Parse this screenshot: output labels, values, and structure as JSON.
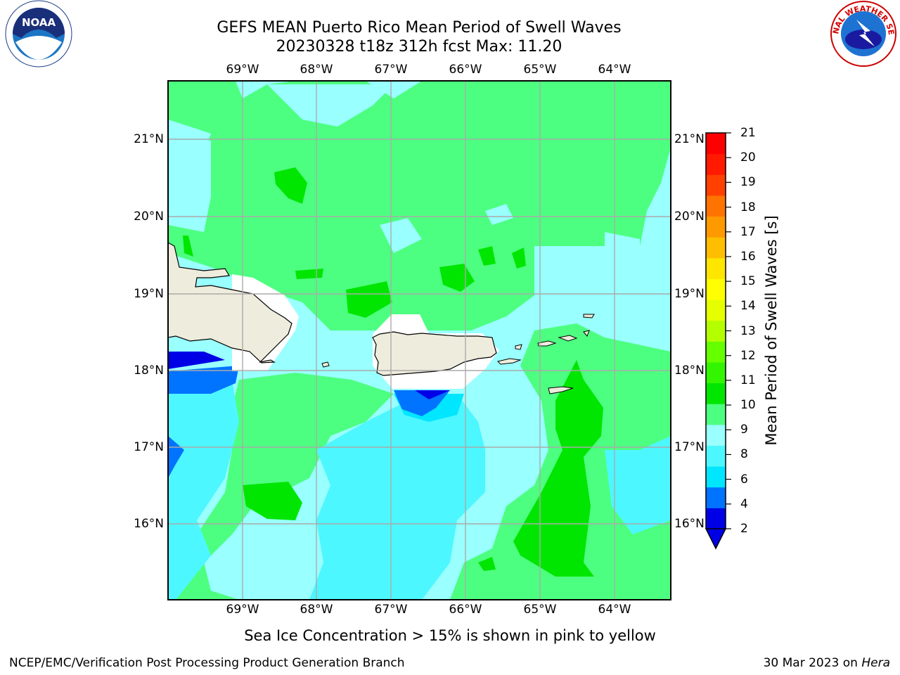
{
  "title": {
    "line1": "GEFS MEAN Puerto Rico Mean Period of Swell Waves",
    "line2": "20230328 t18z 312h fcst   Max: 11.20"
  },
  "map": {
    "lon_labels": [
      "69°W",
      "68°W",
      "67°W",
      "66°W",
      "65°W",
      "64°W"
    ],
    "lat_labels": [
      "21°N",
      "20°N",
      "19°N",
      "18°N",
      "17°N",
      "16°N"
    ]
  },
  "colorbar": {
    "title": "Mean Period of Swell Waves [s]",
    "tick_labels": [
      "21",
      "20",
      "19",
      "18",
      "17",
      "16",
      "15",
      "14",
      "13",
      "12",
      "11",
      "10",
      "9",
      "8",
      "6",
      "4",
      "2"
    ],
    "colors": [
      "#0000e6",
      "#0073ff",
      "#00e6ff",
      "#4df7ff",
      "#99ffff",
      "#4dff80",
      "#00e600",
      "#33f500",
      "#66ff00",
      "#b3ff00",
      "#e6ff00",
      "#ffff00",
      "#ffe600",
      "#ffbf00",
      "#ff9900",
      "#ff7300",
      "#ff4000",
      "#ff1a00",
      "#ff0000"
    ],
    "level_colors": {
      "land": "#eeecdc",
      "period_2_4": "#0073ff",
      "period_4_6": "#00e6ff",
      "period_6_8": "#4df7ff",
      "period_8_9": "#99ffff",
      "period_9_10": "#4dff80",
      "period_10_11": "#00e600"
    }
  },
  "note": "Sea Ice Concentration > 15% is shown in pink to yellow",
  "footer": {
    "left": "NCEP/EMC/Verification Post Processing Product Generation Branch",
    "right_date": "30 Mar 2023 on ",
    "right_host": "Hera"
  },
  "logos": {
    "noaa": "NOAA",
    "nws_text": "NATIONAL WEATHER SERVICE"
  }
}
